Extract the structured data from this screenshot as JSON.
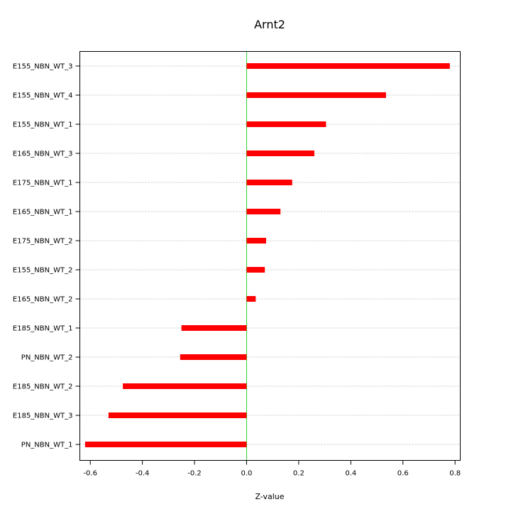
{
  "chart_data": {
    "type": "bar",
    "orientation": "horizontal",
    "title": "Arnt2",
    "xlabel": "Z-value",
    "ylabel": "",
    "xlim": [
      -0.64,
      0.82
    ],
    "xticks": [
      -0.6,
      -0.4,
      -0.2,
      0.0,
      0.2,
      0.4,
      0.6,
      0.8
    ],
    "xtick_labels": [
      "-0.6",
      "-0.4",
      "-0.2",
      "0.0",
      "0.2",
      "0.4",
      "0.6",
      "0.8"
    ],
    "categories": [
      "E155_NBN_WT_3",
      "E155_NBN_WT_4",
      "E155_NBN_WT_1",
      "E165_NBN_WT_3",
      "E175_NBN_WT_1",
      "E165_NBN_WT_1",
      "E175_NBN_WT_2",
      "E155_NBN_WT_2",
      "E165_NBN_WT_2",
      "E185_NBN_WT_1",
      "PN_NBN_WT_2",
      "E185_NBN_WT_2",
      "E185_NBN_WT_3",
      "PN_NBN_WT_1"
    ],
    "values": [
      0.78,
      0.535,
      0.305,
      0.26,
      0.175,
      0.13,
      0.075,
      0.07,
      0.035,
      -0.25,
      -0.255,
      -0.475,
      -0.53,
      -0.62
    ],
    "grid": true,
    "bar_color": "#ff0000",
    "zero_line_color": "#33cc33"
  }
}
